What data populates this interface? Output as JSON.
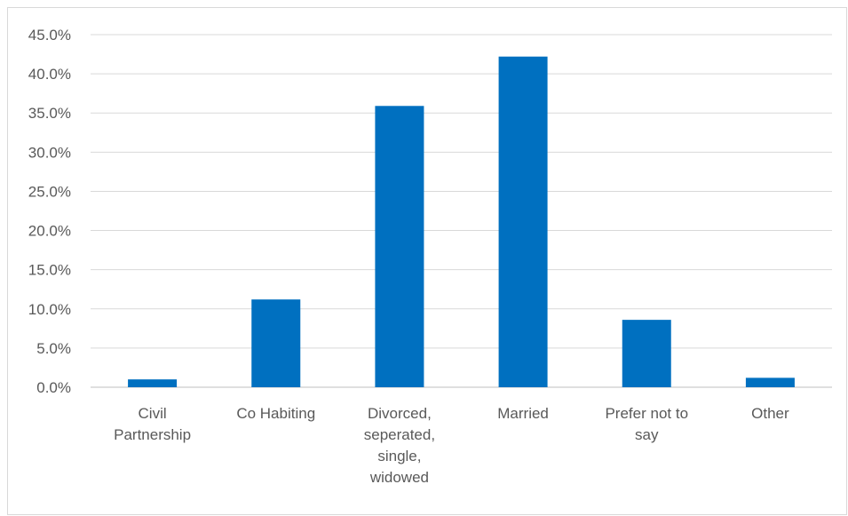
{
  "chart_data": {
    "type": "bar",
    "title": "",
    "xlabel": "",
    "ylabel": "",
    "ylim": [
      0,
      45
    ],
    "y_tick_step": 5,
    "y_tick_format": "percent_one_decimal",
    "grid": "horizontal",
    "legend": "none",
    "categories": [
      [
        "Civil",
        "Partnership"
      ],
      [
        "Co Habiting"
      ],
      [
        "Divorced,",
        "seperated,",
        "single,",
        "widowed"
      ],
      [
        "Married"
      ],
      [
        "Prefer not to",
        "say"
      ],
      [
        "Other"
      ]
    ],
    "values": [
      1.0,
      11.2,
      35.9,
      42.2,
      8.6,
      1.2
    ],
    "colors": {
      "bar": "#0070c0",
      "grid": "#d9d9d9",
      "axis": "#bfbfbf",
      "text": "#595959"
    }
  }
}
